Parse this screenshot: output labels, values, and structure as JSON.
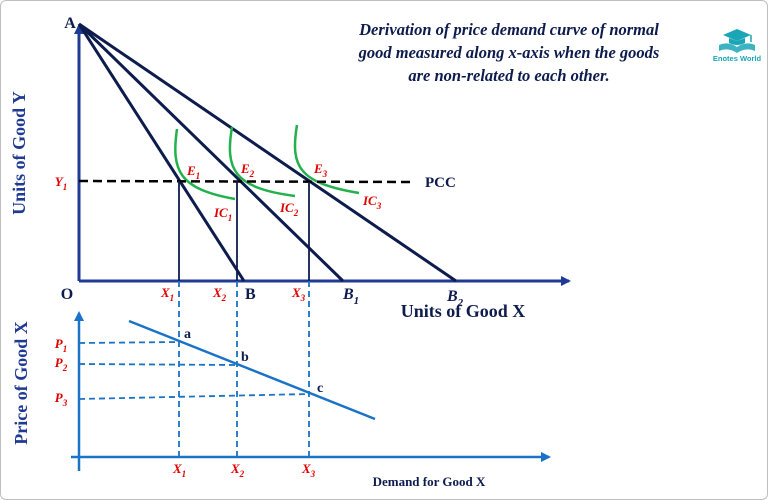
{
  "colors": {
    "axis": "#1f3a93",
    "budget_line": "#0d1b4d",
    "demand_line": "#1a73c6",
    "indifference_curve": "#22b14c",
    "red_label": "#e00000",
    "dark_text": "#0d1b4d",
    "black": "#000000",
    "logo_teal": "#1aa6b7"
  },
  "title": {
    "line1": "Derivation of price demand curve of normal",
    "line2": "good measured along x-axis when the goods",
    "line3": "are non-related to each other."
  },
  "logo": {
    "text": "Enotes World",
    "icon": "book-graduation-cap-icon"
  },
  "top_panel": {
    "y_axis_label": "Units of Good Y",
    "x_axis_label": "Units of Good X",
    "origin_label": "O",
    "intercept_label": "A",
    "y_level_label": {
      "main": "Y",
      "sub": "1"
    },
    "pcc_label": "PCC",
    "budget_endpoints": [
      {
        "main": "B",
        "sub": ""
      },
      {
        "main": "B",
        "sub": "1"
      },
      {
        "main": "B",
        "sub": "2"
      }
    ],
    "equilibria": [
      {
        "main": "E",
        "sub": "1"
      },
      {
        "main": "E",
        "sub": "2"
      },
      {
        "main": "E",
        "sub": "3"
      }
    ],
    "indifference_curves": [
      {
        "main": "IC",
        "sub": "1"
      },
      {
        "main": "IC",
        "sub": "2"
      },
      {
        "main": "IC",
        "sub": "3"
      }
    ],
    "x_quantities": [
      {
        "main": "X",
        "sub": "1"
      },
      {
        "main": "X",
        "sub": "2"
      },
      {
        "main": "X",
        "sub": "3"
      }
    ]
  },
  "bottom_panel": {
    "y_axis_label": "Price of Good X",
    "x_axis_label": "Demand for Good X",
    "prices": [
      {
        "main": "P",
        "sub": "1"
      },
      {
        "main": "P",
        "sub": "2"
      },
      {
        "main": "P",
        "sub": "3"
      }
    ],
    "demand_points": [
      "a",
      "b",
      "c"
    ],
    "x_quantities": [
      {
        "main": "X",
        "sub": "1"
      },
      {
        "main": "X",
        "sub": "2"
      },
      {
        "main": "X",
        "sub": "3"
      }
    ]
  }
}
